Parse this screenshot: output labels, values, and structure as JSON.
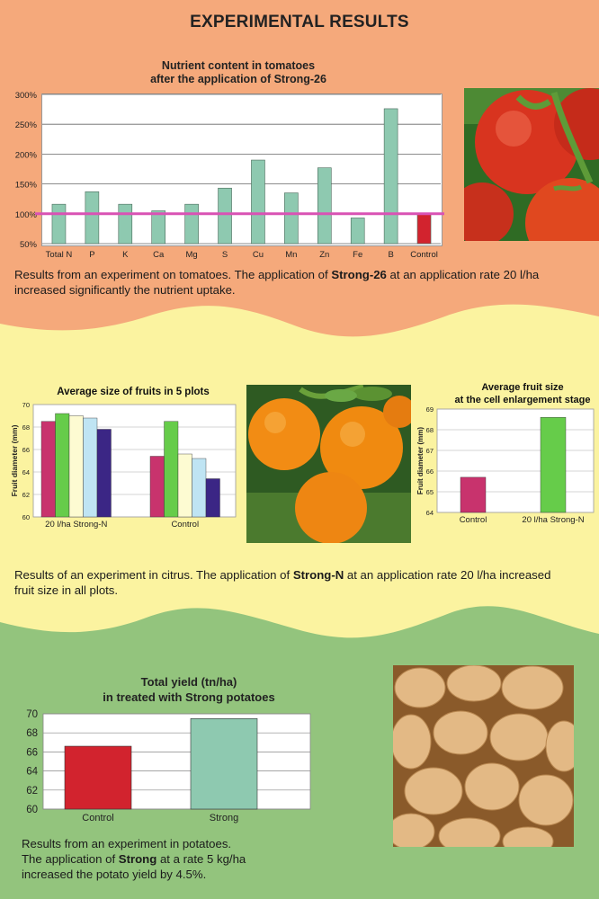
{
  "header": {
    "title": "EXPERIMENTAL RESULTS"
  },
  "colors": {
    "orange_band": "#f5a97b",
    "yellow_band": "#fbf3a0",
    "green_band": "#93c47d",
    "bar_teal": "#8ec9b0",
    "bar_red": "#d2232e",
    "baseline_pink": "#d952b4"
  },
  "tomato": {
    "title_line1": "Nutrient content in tomatoes",
    "title_line2": "after the application of Strong-26",
    "text_before": "Results from an experiment on tomatoes. The application of ",
    "text_bold": "Strong-26",
    "text_after": " at an application rate 20 l/ha increased significantly the nutrient uptake."
  },
  "citrus": {
    "text_before": "Results of an experiment in citrus. The application of ",
    "text_bold": "Strong-N",
    "text_after": " at an application rate 20 l/ha increased fruit size in all plots."
  },
  "potato": {
    "title_line1": "Total yield (tn/ha)",
    "title_line2": "in treated with Strong potatoes",
    "line1": "Results from an experiment in potatoes.",
    "line2_before": "The application of ",
    "line2_bold": "Strong",
    "line2_after": " at a rate 5 kg/ha",
    "line3": "increased the potato yield by 4.5%."
  },
  "chart_data": [
    {
      "id": "nutrients",
      "type": "bar",
      "title": "Nutrient content in tomatoes after the application of Strong-26",
      "categories": [
        "Total N",
        "P",
        "K",
        "Ca",
        "Mg",
        "S",
        "Cu",
        "Mn",
        "Zn",
        "Fe",
        "B",
        "Control"
      ],
      "values": [
        116,
        137,
        116,
        105,
        116,
        143,
        190,
        135,
        177,
        93,
        276,
        100
      ],
      "ylim": [
        50,
        300
      ],
      "yticks": [
        "50%",
        "100%",
        "150%",
        "200%",
        "250%",
        "300%"
      ],
      "ytick_values": [
        50,
        100,
        150,
        200,
        250,
        300
      ],
      "reference_line": 100,
      "grid": true
    },
    {
      "id": "plots",
      "type": "bar",
      "title": "Average size of fruits in 5 plots",
      "ylabel": "Fruit diameter (mm)",
      "ylim": [
        60,
        70
      ],
      "yticks": [
        "60",
        "62",
        "64",
        "66",
        "68",
        "70"
      ],
      "ytick_values": [
        60,
        62,
        64,
        66,
        68,
        70
      ],
      "categories": [
        "20 l/ha Strong-N",
        "Control"
      ],
      "series_colors": [
        "#c8336d",
        "#66cc4a",
        "#fdfbd2",
        "#bfe4f3",
        "#3b2685"
      ],
      "groups": [
        [
          68.5,
          69.2,
          69.0,
          68.8,
          67.8
        ],
        [
          65.4,
          68.5,
          65.6,
          65.2,
          63.4
        ]
      ],
      "grid": true
    },
    {
      "id": "enlargement",
      "type": "bar",
      "title": "Average fruit size at the cell enlargement stage",
      "ylabel": "Fruit diameter (mm)",
      "ylim": [
        64,
        69
      ],
      "yticks": [
        "64",
        "65",
        "66",
        "67",
        "68",
        "69"
      ],
      "ytick_values": [
        64,
        65,
        66,
        67,
        68,
        69
      ],
      "categories": [
        "Control",
        "20 l/ha Strong-N"
      ],
      "values": [
        65.7,
        68.6
      ],
      "colors": [
        "#c8336d",
        "#66cc4a"
      ],
      "grid": true
    },
    {
      "id": "yield",
      "type": "bar",
      "title": "Total yield (tn/ha) in treated with Strong potatoes",
      "ylim": [
        60,
        70
      ],
      "yticks": [
        "60",
        "62",
        "64",
        "66",
        "68",
        "70"
      ],
      "ytick_values": [
        60,
        62,
        64,
        66,
        68,
        70
      ],
      "categories": [
        "Control",
        "Strong"
      ],
      "values": [
        66.6,
        69.5
      ],
      "colors": [
        "#d2232e",
        "#8ec9b0"
      ],
      "grid": true
    }
  ]
}
